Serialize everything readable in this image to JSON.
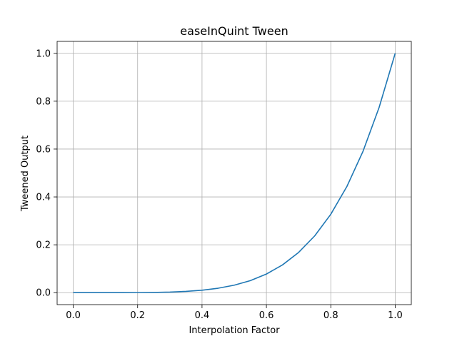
{
  "chart_data": {
    "type": "line",
    "title": "easeInQuint Tween",
    "xlabel": "Interpolation Factor",
    "ylabel": "Tweened Output",
    "xlim": [
      -0.05,
      1.05
    ],
    "ylim": [
      -0.05,
      1.05
    ],
    "xticks": [
      0.0,
      0.2,
      0.4,
      0.6,
      0.8,
      1.0
    ],
    "xtick_labels": [
      "0.0",
      "0.2",
      "0.4",
      "0.6",
      "0.8",
      "1.0"
    ],
    "yticks": [
      0.0,
      0.2,
      0.4,
      0.6,
      0.8,
      1.0
    ],
    "ytick_labels": [
      "0.0",
      "0.2",
      "0.4",
      "0.6",
      "0.8",
      "1.0"
    ],
    "grid": true,
    "series": [
      {
        "color": "#1f77b4",
        "x": [
          0.0,
          0.05,
          0.1,
          0.15,
          0.2,
          0.25,
          0.3,
          0.35,
          0.4,
          0.45,
          0.5,
          0.55,
          0.6,
          0.65,
          0.7,
          0.75,
          0.8,
          0.85,
          0.9,
          0.95,
          1.0
        ],
        "y": [
          0.0,
          0.0,
          0.0,
          0.0001,
          0.0003,
          0.001,
          0.0024,
          0.0053,
          0.0102,
          0.0185,
          0.0313,
          0.0503,
          0.0778,
          0.116,
          0.1681,
          0.2373,
          0.3277,
          0.4437,
          0.5905,
          0.7738,
          1.0
        ]
      }
    ]
  }
}
